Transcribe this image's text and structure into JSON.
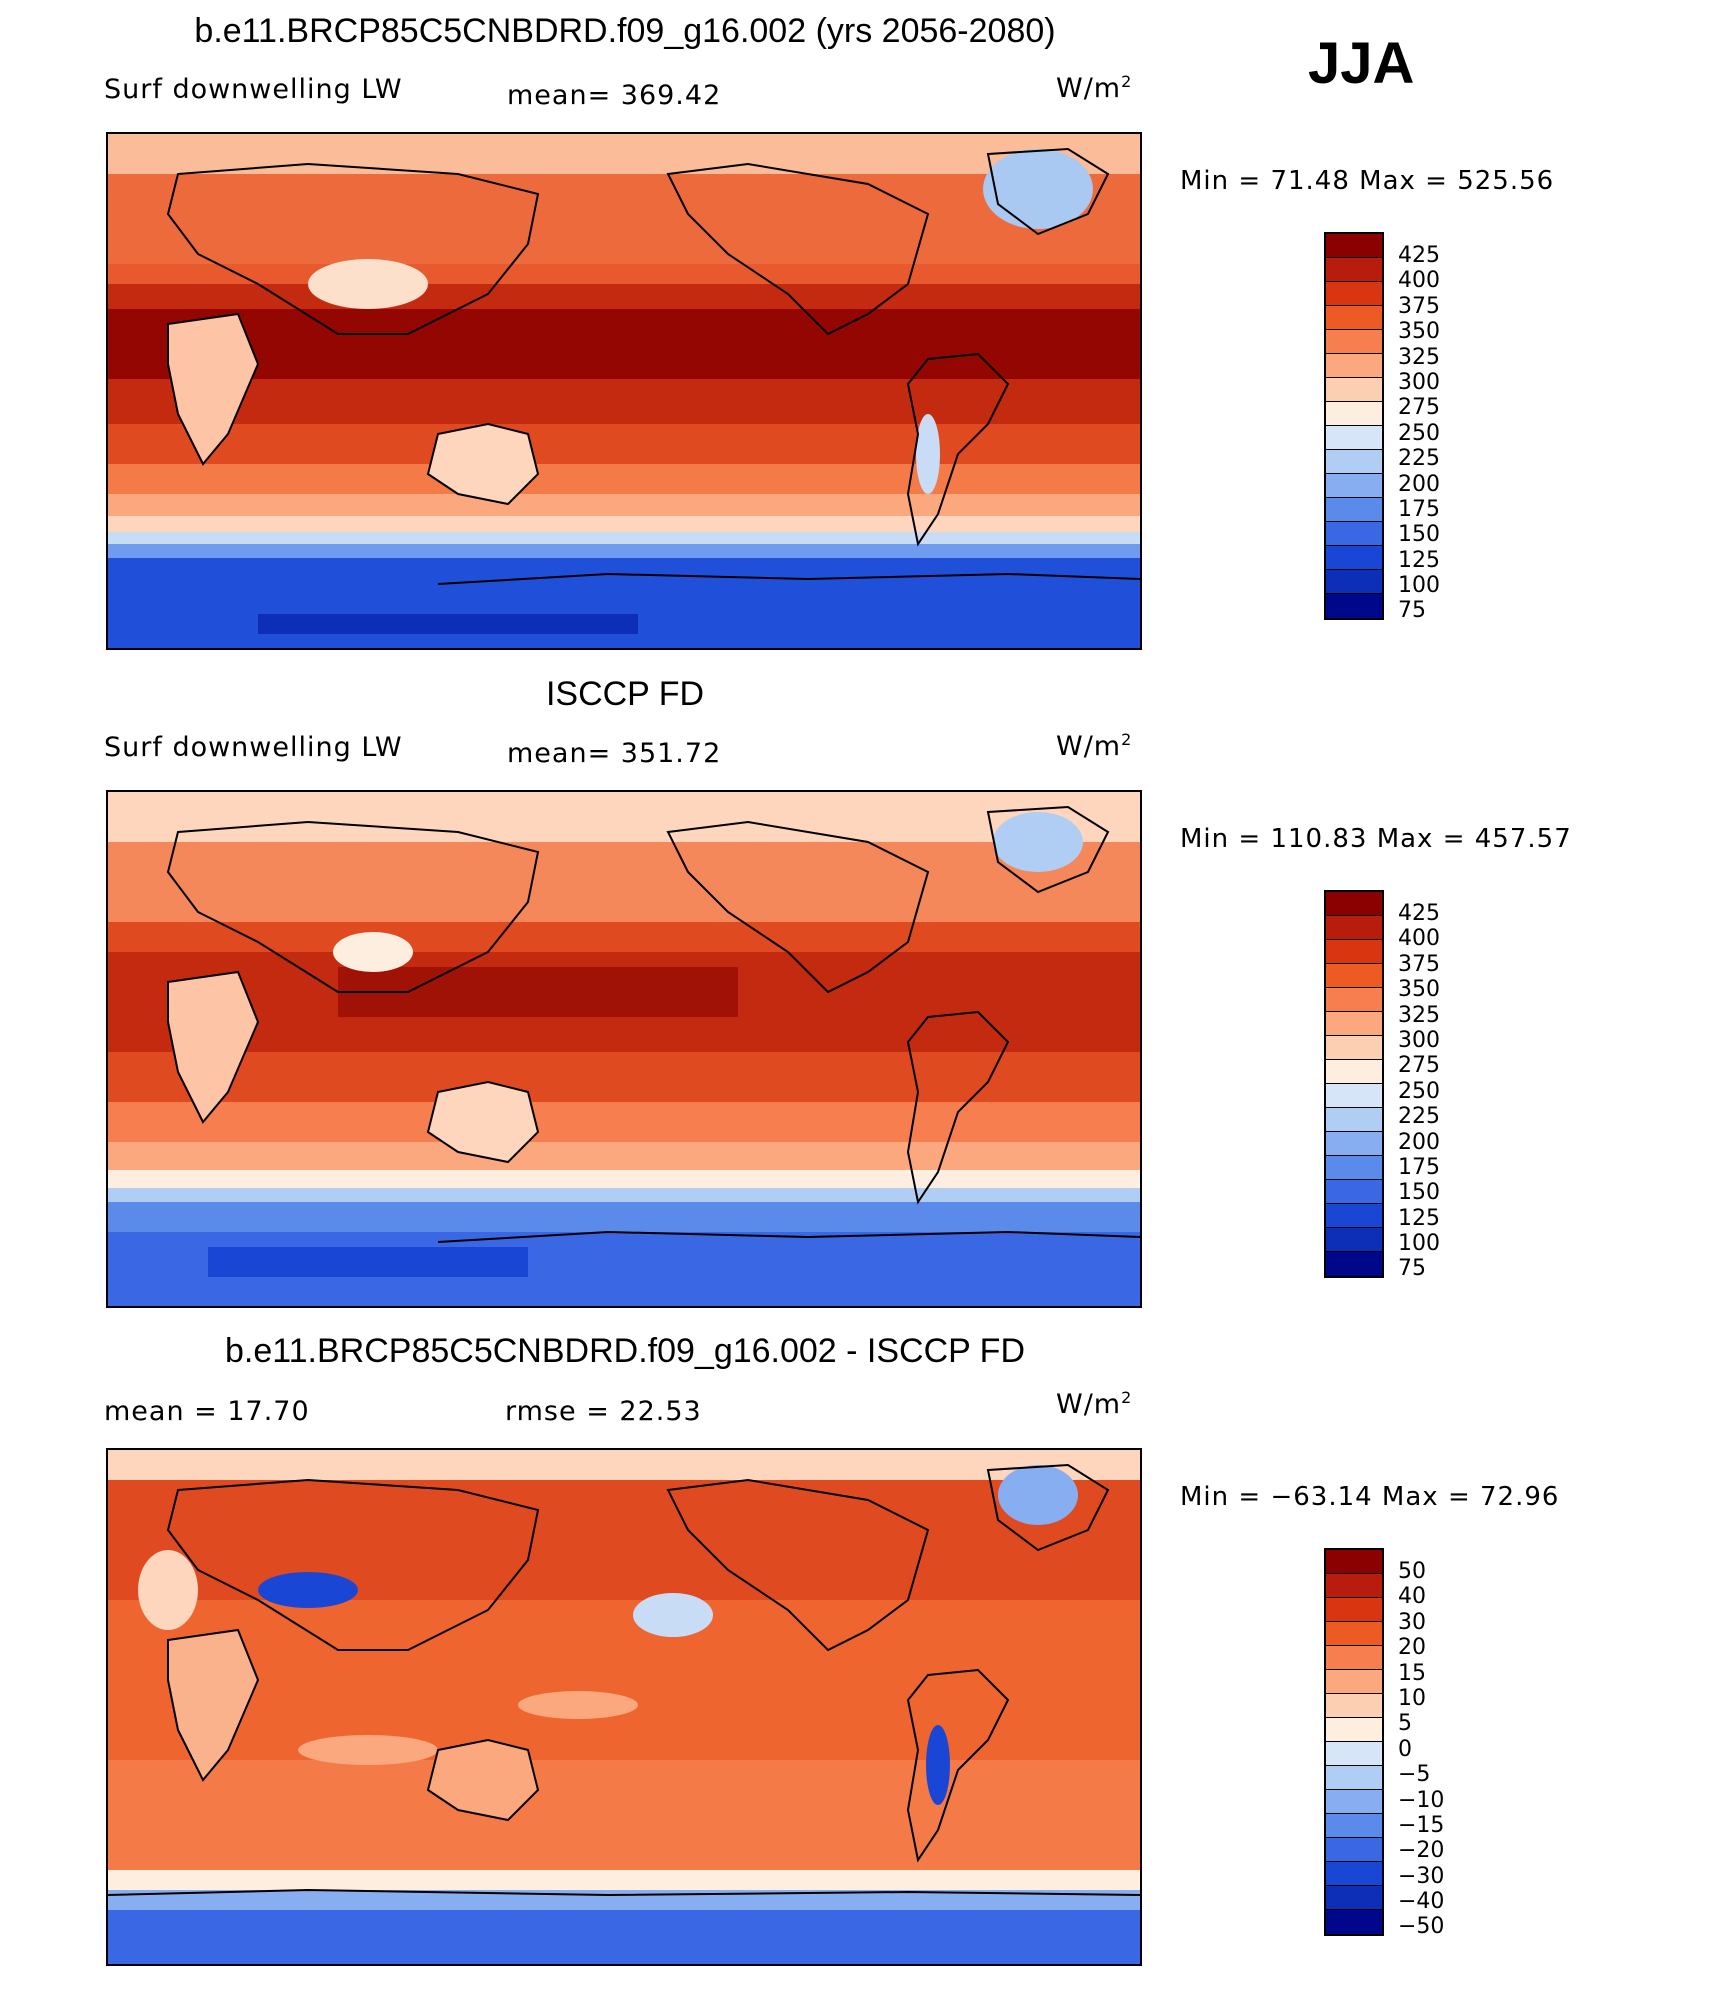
{
  "season": "JJA",
  "units": "W/m",
  "units_sup": "2",
  "panels": [
    {
      "title": "b.e11.BRCP85C5CNBDRD.f09_g16.002 (yrs 2056-2080)",
      "variable": "Surf downwelling LW",
      "stat1": "mean= 369.42",
      "stat2": "",
      "minmax": "Min = 71.48 Max = 525.56",
      "levels": [
        "425",
        "400",
        "375",
        "350",
        "325",
        "300",
        "275",
        "250",
        "225",
        "200",
        "175",
        "150",
        "125",
        "100",
        "75"
      ],
      "colors": [
        "#8b0000",
        "#b81c0c",
        "#d83510",
        "#ee5a24",
        "#f77e4e",
        "#fba87f",
        "#fdcfb2",
        "#fdeee0",
        "#d6e6f8",
        "#b0cdf4",
        "#87aef0",
        "#5b8bea",
        "#3a68e4",
        "#1a46d6",
        "#0d2fb8",
        "#00078a"
      ]
    },
    {
      "title": "ISCCP FD",
      "variable": "Surf downwelling LW",
      "stat1": "mean= 351.72",
      "stat2": "",
      "minmax": "Min = 110.83 Max = 457.57",
      "levels": [
        "425",
        "400",
        "375",
        "350",
        "325",
        "300",
        "275",
        "250",
        "225",
        "200",
        "175",
        "150",
        "125",
        "100",
        "75"
      ],
      "colors": [
        "#8b0000",
        "#b81c0c",
        "#d83510",
        "#ee5a24",
        "#f77e4e",
        "#fba87f",
        "#fdcfb2",
        "#fdeee0",
        "#d6e6f8",
        "#b0cdf4",
        "#87aef0",
        "#5b8bea",
        "#3a68e4",
        "#1a46d6",
        "#0d2fb8",
        "#00078a"
      ]
    },
    {
      "title": "b.e11.BRCP85C5CNBDRD.f09_g16.002 - ISCCP FD",
      "variable": "",
      "stat1": "mean =   17.70",
      "stat2": "rmse =   22.53",
      "minmax": "Min = −63.14 Max = 72.96",
      "levels": [
        "50",
        "40",
        "30",
        "20",
        "15",
        "10",
        "5",
        "0",
        "−5",
        "−10",
        "−15",
        "−20",
        "−30",
        "−40",
        "−50"
      ],
      "colors": [
        "#8b0000",
        "#b81c0c",
        "#d83510",
        "#ee5a24",
        "#f77e4e",
        "#fba87f",
        "#fdcfb2",
        "#fdeee0",
        "#d6e6f8",
        "#b0cdf4",
        "#87aef0",
        "#5b8bea",
        "#3a68e4",
        "#1a46d6",
        "#0d2fb8",
        "#00078a"
      ]
    }
  ]
}
